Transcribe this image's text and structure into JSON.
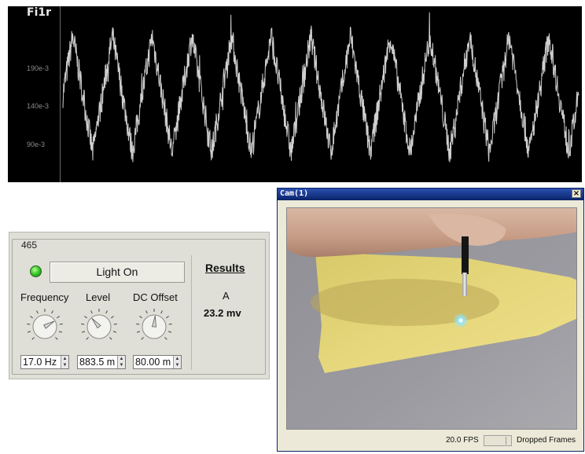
{
  "plot": {
    "title": "Fi1r",
    "y_ticks": [
      "190e-3",
      "140e-3",
      "90e-3"
    ],
    "trace_color": "#cfcfcf",
    "background": "#000000"
  },
  "chart_data": {
    "type": "line",
    "title": "Fi1r",
    "y_ticks": [
      "190e-3",
      "140e-3",
      "90e-3"
    ],
    "ylim": [
      60,
      220
    ],
    "series": [
      {
        "shape": "noisy triangle wave",
        "cycles": 13,
        "peaks_approx": 195,
        "troughs_approx": 85
      }
    ]
  },
  "panel": {
    "group_label": "465",
    "light_button": "Light On",
    "led_color": "#3dcc2a",
    "knobs": [
      {
        "label": "Frequency",
        "value": "17.0 Hz",
        "position": 0.72
      },
      {
        "label": "Level",
        "value": "883.5 m",
        "position": 0.35
      },
      {
        "label": "DC Offset",
        "value": "80.00 m",
        "position": 0.52
      }
    ],
    "results": {
      "title": "Results",
      "name": "A",
      "value": "23.2 mv"
    }
  },
  "camera": {
    "title": "Cam(1)",
    "close_glyph": "×",
    "fps": "20.0 FPS",
    "dropped_label": "Dropped Frames"
  }
}
